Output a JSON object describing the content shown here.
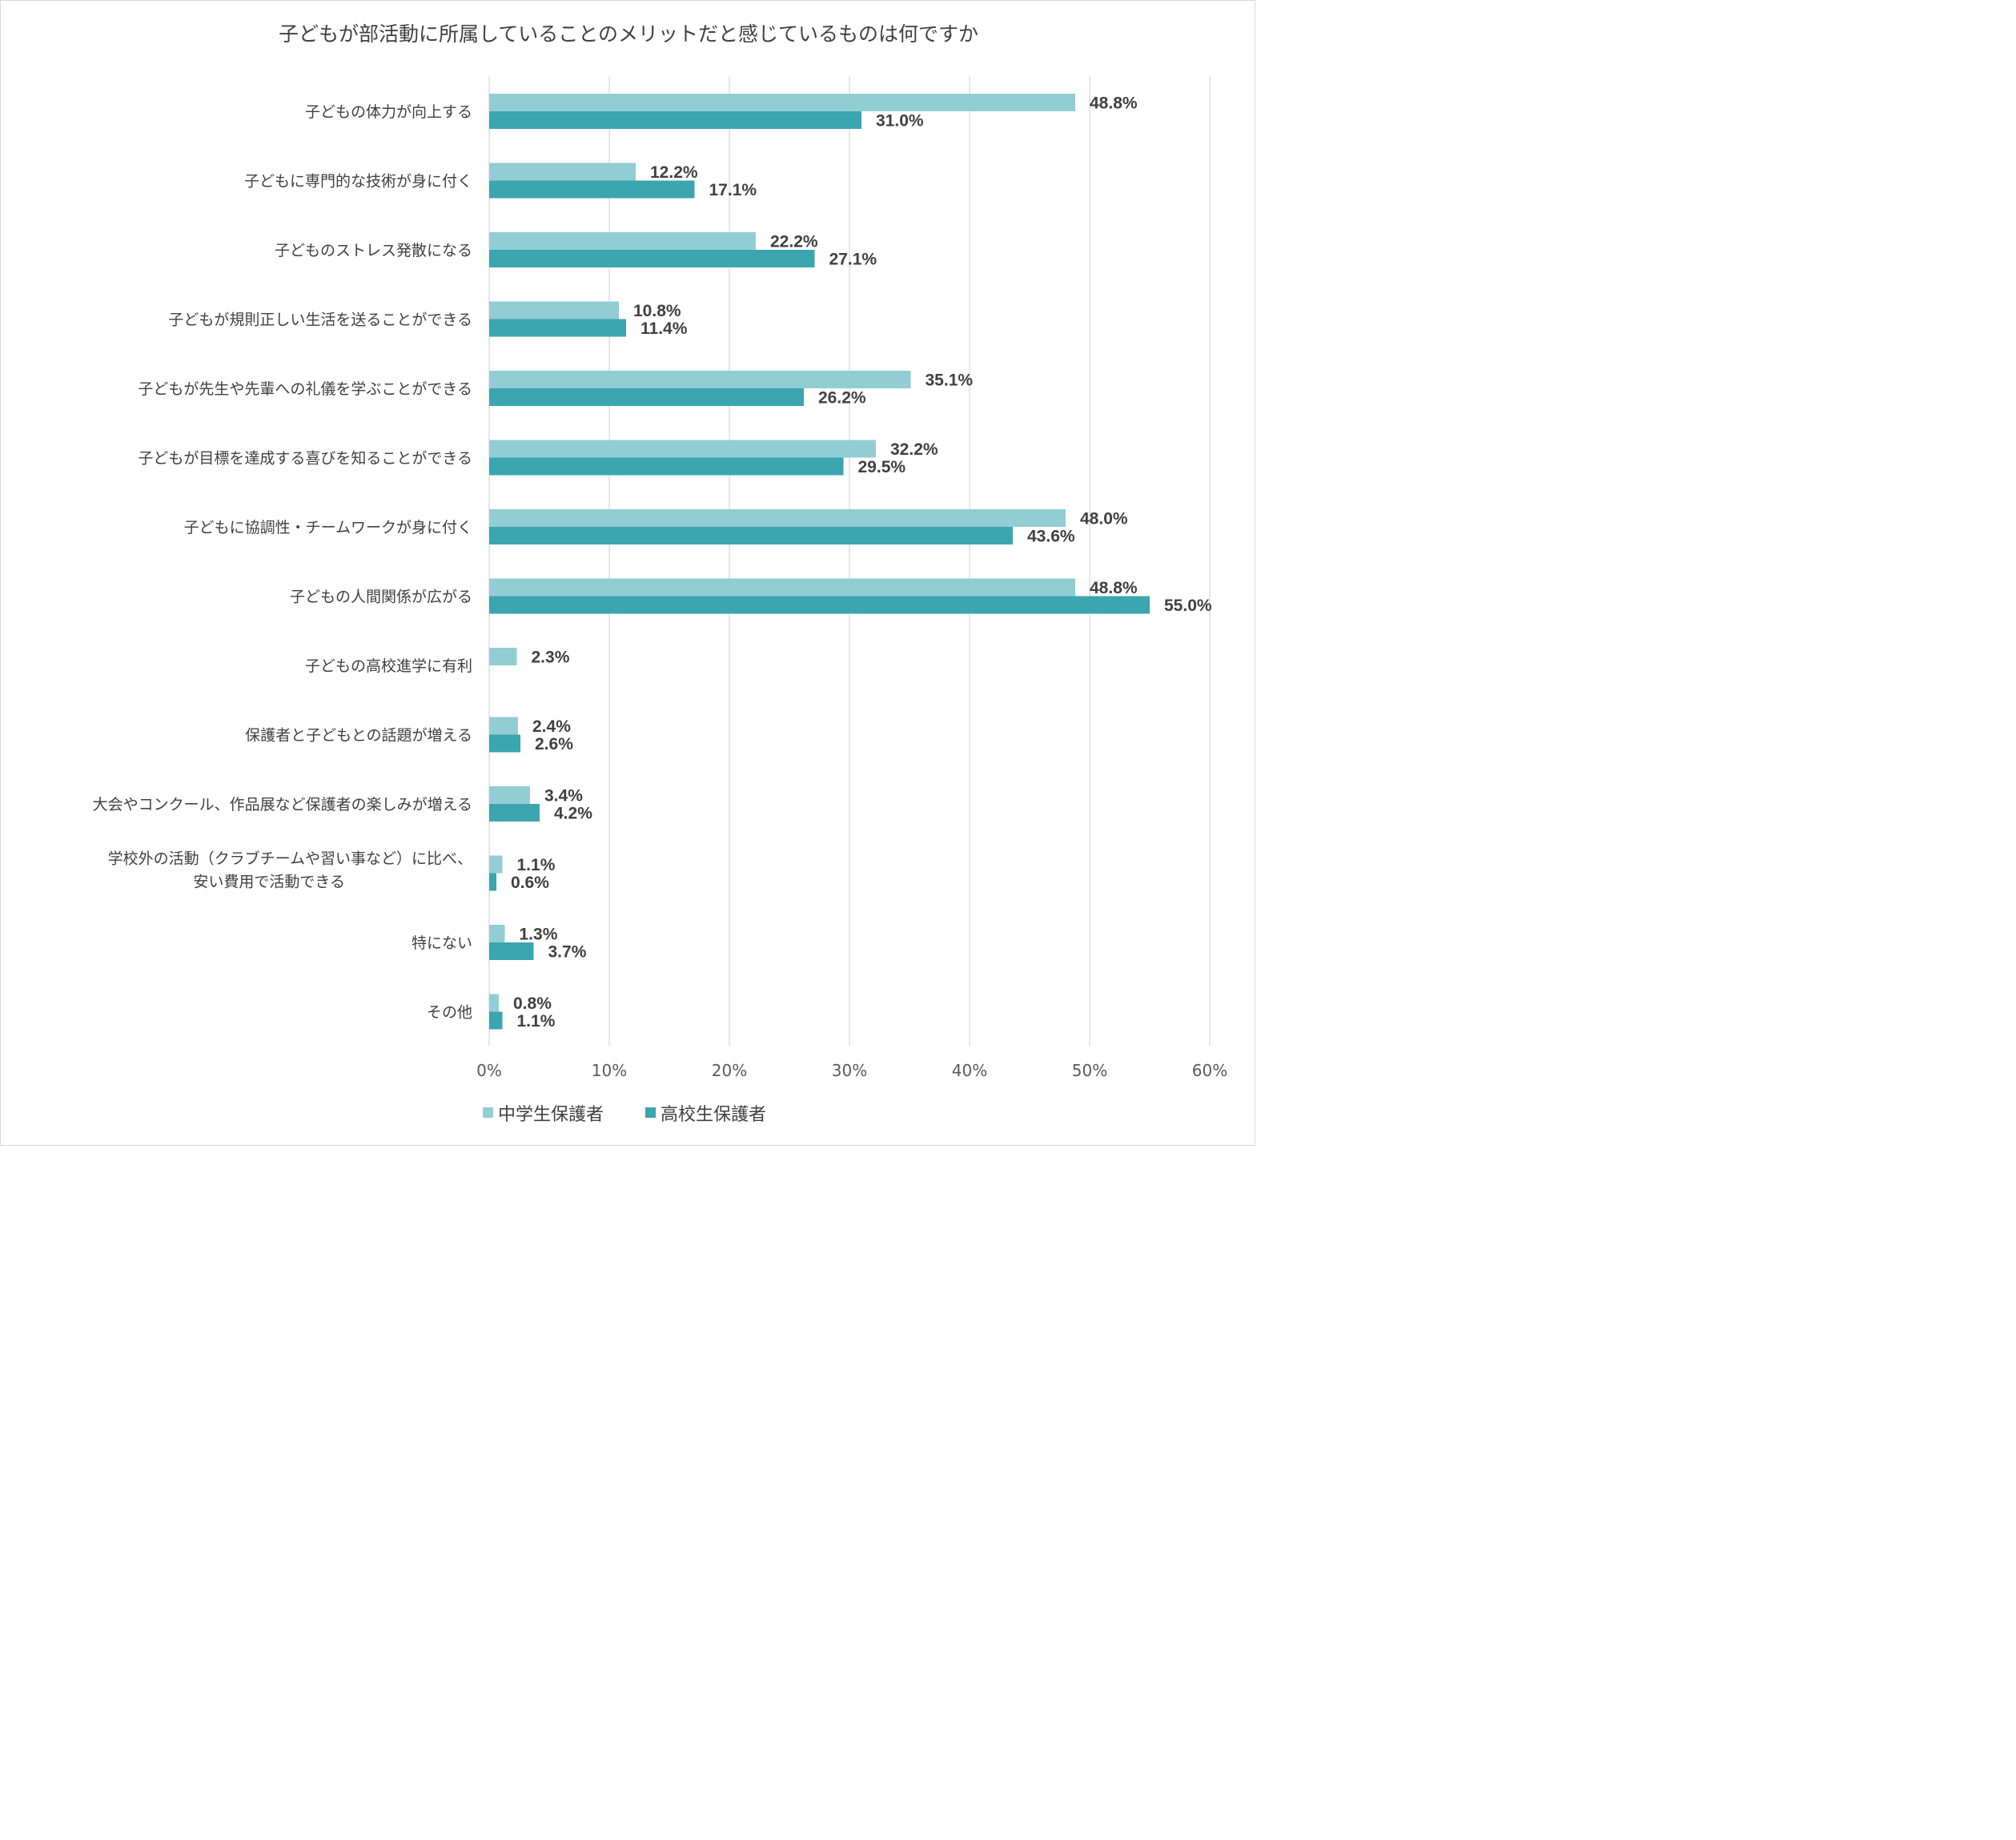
{
  "colors": {
    "series1": "#92CDD4",
    "series2": "#3BA6AF",
    "grid": "#d9d9d9"
  },
  "chart_data": {
    "type": "bar",
    "orientation": "horizontal",
    "title": "子どもが部活動に所属していることのメリットだと感じているものは何ですか",
    "categories": [
      [
        "子どもの体力が向上する"
      ],
      [
        "子どもに専門的な技術が身に付く"
      ],
      [
        "子どものストレス発散になる"
      ],
      [
        "子どもが規則正しい生活を送ることができる"
      ],
      [
        "子どもが先生や先輩への礼儀を学ぶことができる"
      ],
      [
        "子どもが目標を達成する喜びを知ることができる"
      ],
      [
        "子どもに協調性・チームワークが身に付く"
      ],
      [
        "子どもの人間関係が広がる"
      ],
      [
        "子どもの高校進学に有利"
      ],
      [
        "保護者と子どもとの話題が増える"
      ],
      [
        "大会やコンクール、作品展など保護者の楽しみが増える"
      ],
      [
        "学校外の活動（クラブチームや習い事など）に比べ、",
        "安い費用で活動できる"
      ],
      [
        "特にない"
      ],
      [
        "その他"
      ]
    ],
    "series": [
      {
        "name": "中学生保護者",
        "values": [
          48.8,
          12.2,
          22.2,
          10.8,
          35.1,
          32.2,
          48.0,
          48.8,
          2.3,
          2.4,
          3.4,
          1.1,
          1.3,
          0.8
        ],
        "labels": [
          "48.8%",
          "12.2%",
          "22.2%",
          "10.8%",
          "35.1%",
          "32.2%",
          "48.0%",
          "48.8%",
          "2.3%",
          "2.4%",
          "3.4%",
          "1.1%",
          "1.3%",
          "0.8%"
        ]
      },
      {
        "name": "高校生保護者",
        "values": [
          31.0,
          17.1,
          27.1,
          11.4,
          26.2,
          29.5,
          43.6,
          55.0,
          null,
          2.6,
          4.2,
          0.6,
          3.7,
          1.1
        ],
        "labels": [
          "31.0%",
          "17.1%",
          "27.1%",
          "11.4%",
          "26.2%",
          "29.5%",
          "43.6%",
          "55.0%",
          null,
          "2.6%",
          "4.2%",
          "0.6%",
          "3.7%",
          "1.1%"
        ]
      }
    ],
    "xlim": [
      0,
      60
    ],
    "xticks": [
      0,
      10,
      20,
      30,
      40,
      50,
      60
    ],
    "xtick_labels": [
      "0%",
      "10%",
      "20%",
      "30%",
      "40%",
      "50%",
      "60%"
    ],
    "grid": true,
    "legend_position": "bottom"
  }
}
